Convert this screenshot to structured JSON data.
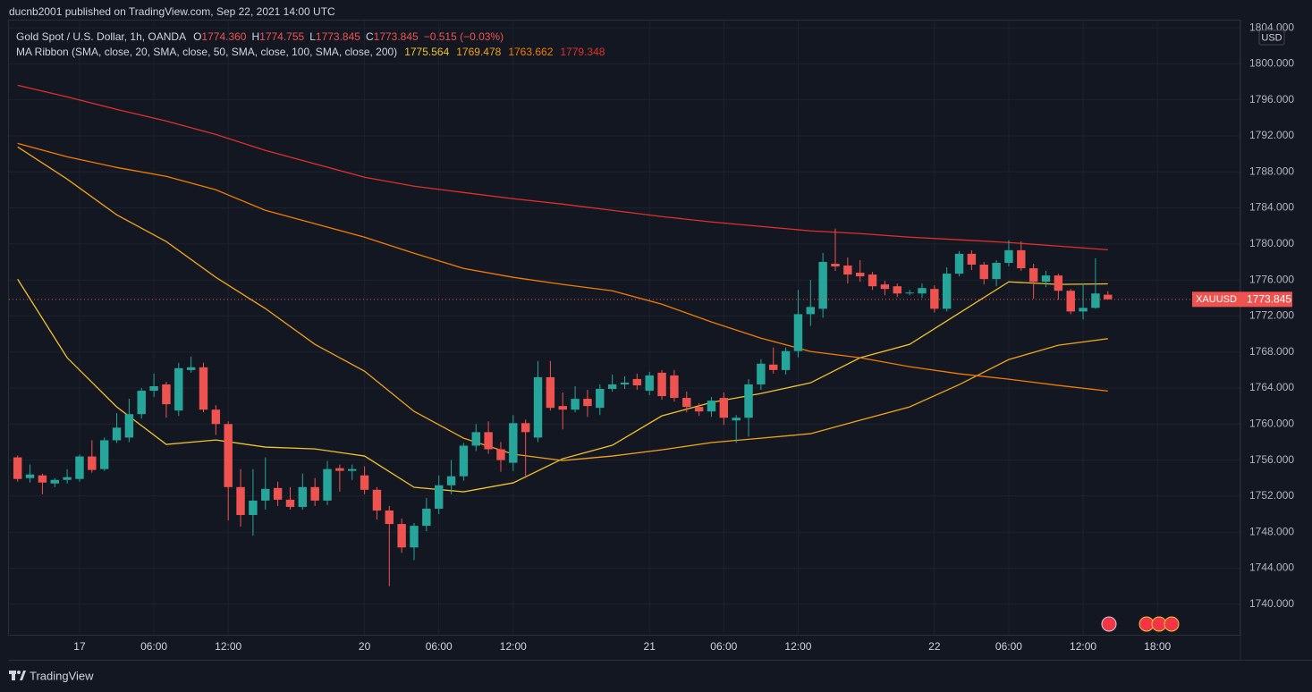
{
  "chart_data": {
    "type": "candlestick",
    "published": "ducnb2001 published on TradingView.com, Sep 22, 2021 14:00 UTC",
    "symbol": "Gold Spot / U.S. Dollar, 1h, OANDA",
    "ohlc": [
      {
        "label": "O",
        "value": "1774.360"
      },
      {
        "label": "H",
        "value": "1774.755"
      },
      {
        "label": "L",
        "value": "1773.845"
      },
      {
        "label": "C",
        "value": "1773.845"
      }
    ],
    "change": "−0.515 (−0.03%)",
    "ma_label": "MA Ribbon (SMA, close, 20, SMA, close, 50, SMA, close, 100, SMA, close, 200)",
    "ma_values": [
      "1775.564",
      "1769.478",
      "1763.662",
      "1779.348"
    ],
    "currency": "USD",
    "last_label": "XAUUSD",
    "last_value": 1773.845,
    "brand": "TradingView",
    "up_color": "#26a69a",
    "down_color": "#ef5350",
    "grid": true,
    "xlim": [
      -0.7,
      98.7
    ],
    "xticks": [
      {
        "value": 5,
        "label": "17"
      },
      {
        "value": 11,
        "label": "06:00"
      },
      {
        "value": 17,
        "label": "12:00"
      },
      {
        "value": 28,
        "label": "20"
      },
      {
        "value": 34,
        "label": "06:00"
      },
      {
        "value": 40,
        "label": "12:00"
      },
      {
        "value": 51,
        "label": "21"
      },
      {
        "value": 57,
        "label": "06:00"
      },
      {
        "value": 63,
        "label": "12:00"
      },
      {
        "value": 74,
        "label": "22"
      },
      {
        "value": 80,
        "label": "06:00"
      },
      {
        "value": 86,
        "label": "12:00"
      },
      {
        "value": 92,
        "label": "18:00"
      }
    ],
    "ylim": [
      1736.6,
      1805.1
    ],
    "yticks": [
      {
        "value": 1740,
        "label": "1740.000"
      },
      {
        "value": 1744,
        "label": "1744.000"
      },
      {
        "value": 1748,
        "label": "1748.000"
      },
      {
        "value": 1752,
        "label": "1752.000"
      },
      {
        "value": 1756,
        "label": "1756.000"
      },
      {
        "value": 1760,
        "label": "1760.000"
      },
      {
        "value": 1764,
        "label": "1764.000"
      },
      {
        "value": 1768,
        "label": "1768.000"
      },
      {
        "value": 1772,
        "label": "1772.000"
      },
      {
        "value": 1776,
        "label": "1776.000"
      },
      {
        "value": 1780,
        "label": "1780.000"
      },
      {
        "value": 1784,
        "label": "1784.000"
      },
      {
        "value": 1788,
        "label": "1788.000"
      },
      {
        "value": 1792,
        "label": "1792.000"
      },
      {
        "value": 1796,
        "label": "1796.000"
      },
      {
        "value": 1800,
        "label": "1800.000"
      },
      {
        "value": 1804,
        "label": "1804.000"
      }
    ],
    "candles": {
      "x": [
        0,
        1,
        2,
        3,
        4,
        5,
        6,
        7,
        8,
        9,
        10,
        11,
        12,
        13,
        14,
        15,
        16,
        17,
        18,
        19,
        20,
        21,
        22,
        23,
        24,
        25,
        26,
        27,
        28,
        29,
        30,
        31,
        32,
        33,
        34,
        35,
        36,
        37,
        38,
        39,
        40,
        41,
        42,
        43,
        44,
        45,
        46,
        47,
        48,
        49,
        50,
        51,
        52,
        53,
        54,
        55,
        56,
        57,
        58,
        59,
        60,
        61,
        62,
        63,
        64,
        65,
        66,
        67,
        68,
        69,
        70,
        71,
        72,
        73,
        74,
        75,
        76,
        77,
        78,
        79,
        80,
        81,
        82,
        83,
        84,
        85,
        86,
        87,
        88
      ],
      "open": [
        1756.3,
        1754.0,
        1754.3,
        1753.4,
        1753.8,
        1753.9,
        1756.4,
        1755.0,
        1758.2,
        1758.5,
        1761.1,
        1763.7,
        1764.4,
        1761.5,
        1766.0,
        1766.3,
        1761.6,
        1760.0,
        1753.0,
        1749.9,
        1751.5,
        1752.9,
        1751.6,
        1750.8,
        1753.0,
        1751.5,
        1755.1,
        1754.8,
        1754.3,
        1752.7,
        1750.4,
        1748.9,
        1746.3,
        1748.7,
        1750.6,
        1753.2,
        1754.2,
        1757.6,
        1759.1,
        1757.2,
        1755.7,
        1760.1,
        1758.5,
        1765.2,
        1762.0,
        1761.6,
        1762.8,
        1761.8,
        1763.9,
        1764.4,
        1765.0,
        1763.7,
        1765.7,
        1765.4,
        1762.9,
        1761.9,
        1761.4,
        1762.9,
        1760.4,
        1760.7,
        1764.4,
        1766.6,
        1766.0,
        1768.1,
        1772.2,
        1772.8,
        1777.8,
        1777.6,
        1776.8,
        1776.6,
        1775.5,
        1775.3,
        1774.5,
        1774.5,
        1775.0,
        1772.8,
        1776.7,
        1778.9,
        1777.7,
        1776.1,
        1777.9,
        1779.3,
        1777.3,
        1775.8,
        1776.5,
        1774.8,
        1772.5,
        1772.9,
        1774.36
      ],
      "high": [
        1756.5,
        1755.5,
        1754.5,
        1754.0,
        1755.0,
        1756.6,
        1758.2,
        1758.5,
        1761.2,
        1762.8,
        1764.0,
        1765.6,
        1764.7,
        1766.8,
        1767.5,
        1766.8,
        1762.1,
        1760.3,
        1755.0,
        1755.0,
        1756.3,
        1753.6,
        1753.0,
        1754.5,
        1754.0,
        1755.9,
        1755.5,
        1755.5,
        1755.3,
        1753.0,
        1750.9,
        1749.5,
        1749.0,
        1751.8,
        1754.3,
        1756.0,
        1757.9,
        1760.0,
        1760.3,
        1758.0,
        1761.0,
        1760.5,
        1767.0,
        1767.0,
        1763.5,
        1764.2,
        1763.8,
        1764.4,
        1765.5,
        1765.3,
        1765.6,
        1765.8,
        1766.0,
        1766.0,
        1763.6,
        1762.3,
        1763.0,
        1763.5,
        1761.0,
        1765.0,
        1767.2,
        1768.5,
        1768.5,
        1774.9,
        1776.0,
        1779.0,
        1781.7,
        1778.5,
        1778.2,
        1776.9,
        1775.9,
        1775.6,
        1774.9,
        1775.6,
        1775.4,
        1777.4,
        1779.2,
        1779.3,
        1778.0,
        1778.2,
        1780.4,
        1780.3,
        1777.8,
        1777.0,
        1776.7,
        1775.0,
        1775.6,
        1778.4,
        1774.755
      ],
      "low": [
        1753.6,
        1753.5,
        1752.2,
        1753.0,
        1753.4,
        1753.6,
        1754.6,
        1754.8,
        1757.9,
        1758.0,
        1760.6,
        1763.0,
        1760.7,
        1760.9,
        1765.7,
        1761.3,
        1758.8,
        1749.3,
        1748.6,
        1747.6,
        1750.5,
        1750.9,
        1750.5,
        1750.5,
        1750.9,
        1751.0,
        1752.5,
        1753.8,
        1752.2,
        1749.4,
        1742.0,
        1745.7,
        1744.9,
        1748.1,
        1750.0,
        1752.2,
        1753.7,
        1757.0,
        1756.7,
        1754.7,
        1754.8,
        1754.0,
        1758.0,
        1761.5,
        1759.4,
        1761.3,
        1760.8,
        1761.0,
        1763.6,
        1763.9,
        1763.8,
        1763.2,
        1762.7,
        1762.5,
        1761.3,
        1760.9,
        1760.8,
        1759.9,
        1757.9,
        1758.6,
        1763.8,
        1765.6,
        1765.5,
        1767.4,
        1770.9,
        1771.8,
        1777.0,
        1775.6,
        1775.8,
        1774.9,
        1774.3,
        1774.1,
        1774.3,
        1774.0,
        1772.4,
        1772.5,
        1776.4,
        1777.1,
        1775.5,
        1775.3,
        1777.5,
        1777.0,
        1773.9,
        1775.2,
        1773.8,
        1772.2,
        1771.6,
        1772.8,
        1773.845
      ],
      "close": [
        1753.9,
        1754.4,
        1753.5,
        1753.8,
        1754.1,
        1756.4,
        1754.9,
        1758.2,
        1759.6,
        1761.1,
        1763.7,
        1764.2,
        1762.2,
        1766.2,
        1766.3,
        1761.6,
        1760.0,
        1753.0,
        1749.9,
        1751.5,
        1752.8,
        1751.6,
        1750.8,
        1753.0,
        1751.5,
        1755.0,
        1754.8,
        1755.0,
        1752.7,
        1750.4,
        1748.9,
        1746.3,
        1748.7,
        1750.6,
        1753.2,
        1754.2,
        1757.6,
        1759.1,
        1757.2,
        1756.0,
        1760.1,
        1759.1,
        1765.2,
        1761.8,
        1761.6,
        1762.8,
        1762.0,
        1763.9,
        1764.4,
        1764.6,
        1764.3,
        1765.4,
        1763.1,
        1762.9,
        1761.9,
        1761.4,
        1762.6,
        1760.7,
        1760.7,
        1764.4,
        1766.7,
        1766.0,
        1768.1,
        1772.2,
        1773.0,
        1778.0,
        1777.5,
        1776.6,
        1776.4,
        1775.3,
        1775.0,
        1774.5,
        1774.6,
        1775.1,
        1772.8,
        1776.7,
        1778.9,
        1777.7,
        1776.1,
        1777.9,
        1779.3,
        1777.3,
        1775.8,
        1776.5,
        1774.8,
        1772.5,
        1772.9,
        1774.5,
        1773.845
      ]
    },
    "ma_lines": [
      {
        "color": "#f2c12e",
        "x": [
          0,
          4,
          8,
          12,
          16,
          20,
          24,
          28,
          32,
          36,
          40,
          44,
          48,
          52,
          56,
          60,
          64,
          68,
          72,
          76,
          80,
          84,
          88
        ],
        "values": [
          1776.09,
          1767.36,
          1761.9,
          1757.74,
          1758.23,
          1757.44,
          1757.24,
          1756.45,
          1752.98,
          1752.48,
          1753.47,
          1756.15,
          1757.64,
          1760.91,
          1762.4,
          1763.39,
          1764.58,
          1767.36,
          1768.85,
          1772.32,
          1775.79,
          1775.5,
          1775.564
        ]
      },
      {
        "color": "#f2a31a",
        "x": [
          0,
          4,
          8,
          12,
          16,
          20,
          24,
          28,
          32,
          36,
          40,
          44,
          48,
          52,
          56,
          60,
          64,
          68,
          72,
          76,
          80,
          84,
          88
        ],
        "values": [
          1790.77,
          1787.2,
          1783.23,
          1780.26,
          1776.29,
          1772.82,
          1768.85,
          1765.87,
          1761.41,
          1758.43,
          1756.65,
          1755.95,
          1756.45,
          1757.14,
          1757.94,
          1758.43,
          1758.93,
          1760.42,
          1761.9,
          1764.38,
          1767.16,
          1768.75,
          1769.478
        ]
      },
      {
        "color": "#f57c00",
        "x": [
          0,
          4,
          8,
          12,
          16,
          20,
          24,
          28,
          32,
          36,
          40,
          44,
          48,
          52,
          56,
          60,
          64,
          68,
          72,
          76,
          80,
          84,
          88
        ],
        "values": [
          1791.17,
          1789.68,
          1788.49,
          1787.5,
          1786.01,
          1783.73,
          1782.24,
          1780.75,
          1778.97,
          1777.28,
          1776.29,
          1775.5,
          1774.8,
          1773.31,
          1771.33,
          1769.54,
          1768.06,
          1767.36,
          1766.37,
          1765.58,
          1764.98,
          1764.29,
          1763.662
        ]
      },
      {
        "color": "#e0302a",
        "x": [
          0,
          4,
          8,
          12,
          16,
          20,
          24,
          28,
          32,
          36,
          40,
          44,
          48,
          52,
          56,
          60,
          64,
          68,
          72,
          76,
          80,
          84,
          88
        ],
        "values": [
          1797.62,
          1796.33,
          1794.94,
          1793.65,
          1792.16,
          1790.38,
          1788.89,
          1787.4,
          1786.41,
          1785.71,
          1785.02,
          1784.42,
          1783.73,
          1783.04,
          1782.44,
          1781.94,
          1781.45,
          1781.15,
          1780.75,
          1780.46,
          1780.16,
          1779.76,
          1779.348
        ]
      }
    ]
  }
}
